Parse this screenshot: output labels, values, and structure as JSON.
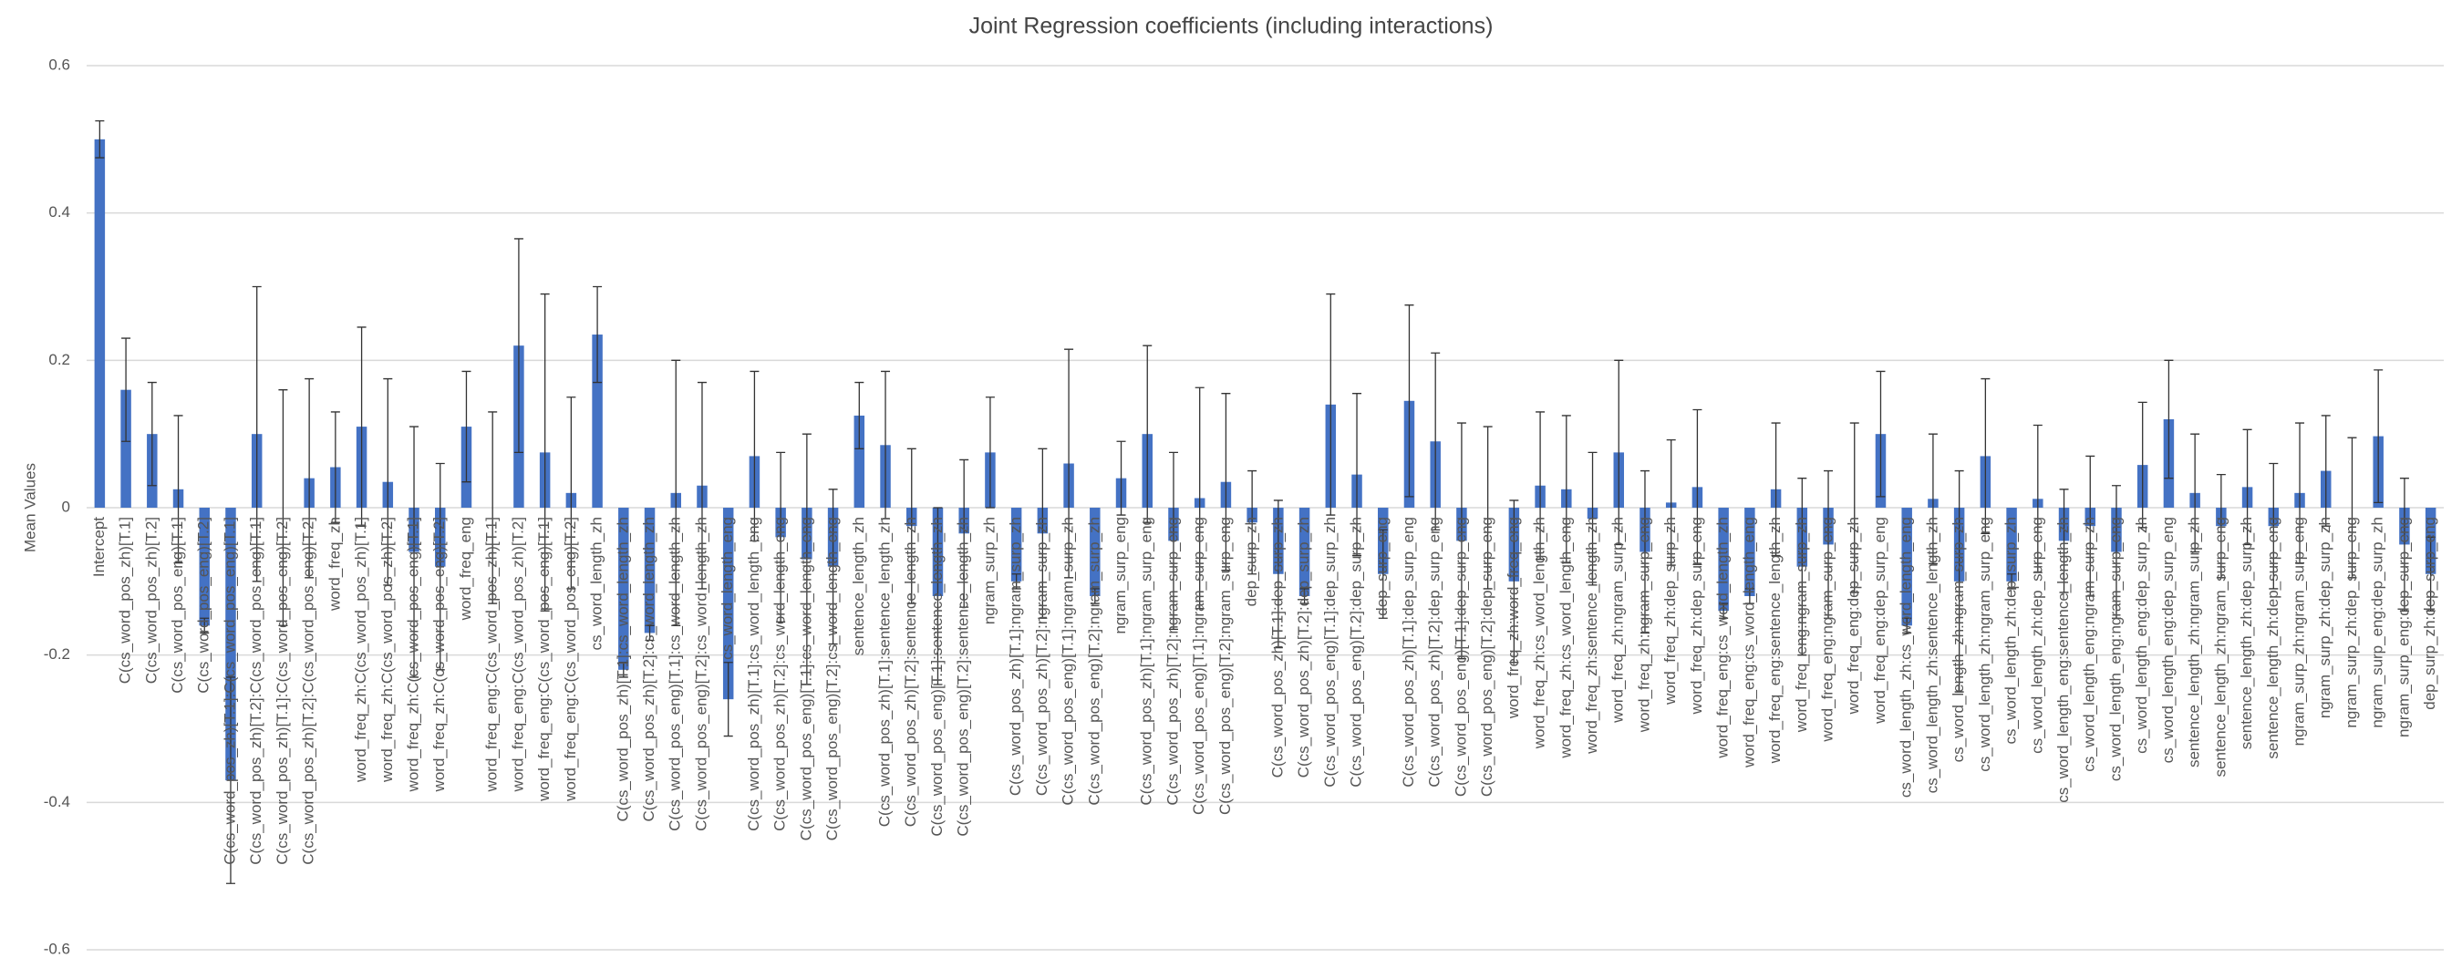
{
  "chart_data": {
    "type": "bar",
    "title": "Joint Regression coefficients (including interactions)",
    "y_label": "Mean Values",
    "color": "#4472c4",
    "error_color": "#333333",
    "grid": true,
    "ylim": [
      -0.6,
      0.6
    ],
    "yticks": [
      -0.6,
      -0.4,
      -0.2,
      0,
      0.2,
      0.4,
      0.6
    ],
    "categories": [
      "Intercept",
      "C(cs_word_pos_zh)[T.1]",
      "C(cs_word_pos_zh)[T.2]",
      "C(cs_word_pos_eng)[T.1]",
      "C(cs_word_pos_eng)[T.2]",
      "C(cs_word_pos_zh)[T.1]:C(cs_word_pos_eng)[T.1]",
      "C(cs_word_pos_zh)[T.2]:C(cs_word_pos_eng)[T.1]",
      "C(cs_word_pos_zh)[T.1]:C(cs_word_pos_eng)[T.2]",
      "C(cs_word_pos_zh)[T.2]:C(cs_word_pos_eng)[T.2]",
      "word_freq_zh",
      "word_freq_zh:C(cs_word_pos_zh)[T.1]",
      "word_freq_zh:C(cs_word_pos_zh)[T.2]",
      "word_freq_zh:C(cs_word_pos_eng)[T.1]",
      "word_freq_zh:C(cs_word_pos_eng)[T.2]",
      "word_freq_eng",
      "word_freq_eng:C(cs_word_pos_zh)[T.1]",
      "word_freq_eng:C(cs_word_pos_zh)[T.2]",
      "word_freq_eng:C(cs_word_pos_eng)[T.1]",
      "word_freq_eng:C(cs_word_pos_eng)[T.2]",
      "cs_word_length_zh",
      "C(cs_word_pos_zh)[T.1]:cs_word_length_zh",
      "C(cs_word_pos_zh)[T.2]:cs_word_length_zh",
      "C(cs_word_pos_eng)[T.1]:cs_word_length_zh",
      "C(cs_word_pos_eng)[T.2]:cs_word_length_zh",
      "cs_word_length_eng",
      "C(cs_word_pos_zh)[T.1]:cs_word_length_eng",
      "C(cs_word_pos_zh)[T.2]:cs_word_length_eng",
      "C(cs_word_pos_eng)[T.1]:cs_word_length_eng",
      "C(cs_word_pos_eng)[T.2]:cs_word_length_eng",
      "sentence_length_zh",
      "C(cs_word_pos_zh)[T.1]:sentence_length_zh",
      "C(cs_word_pos_zh)[T.2]:sentence_length_zh",
      "C(cs_word_pos_eng)[T.1]:sentence_length_zh",
      "C(cs_word_pos_eng)[T.2]:sentence_length_zh",
      "ngram_surp_zh",
      "C(cs_word_pos_zh)[T.1]:ngram_surp_zh",
      "C(cs_word_pos_zh)[T.2]:ngram_surp_zh",
      "C(cs_word_pos_eng)[T.1]:ngram_surp_zh",
      "C(cs_word_pos_eng)[T.2]:ngram_surp_zh",
      "ngram_surp_eng",
      "C(cs_word_pos_zh)[T.1]:ngram_surp_eng",
      "C(cs_word_pos_zh)[T.2]:ngram_surp_eng",
      "C(cs_word_pos_eng)[T.1]:ngram_surp_eng",
      "C(cs_word_pos_eng)[T.2]:ngram_surp_eng",
      "dep_surp_zh",
      "C(cs_word_pos_zh)[T.1]:dep_surp_zh",
      "C(cs_word_pos_zh)[T.2]:dep_surp_zh",
      "C(cs_word_pos_eng)[T.1]:dep_surp_zh",
      "C(cs_word_pos_eng)[T.2]:dep_surp_zh",
      "dep_surp_eng",
      "C(cs_word_pos_zh)[T.1]:dep_surp_eng",
      "C(cs_word_pos_zh)[T.2]:dep_surp_eng",
      "C(cs_word_pos_eng)[T.1]:dep_surp_eng",
      "C(cs_word_pos_eng)[T.2]:dep_surp_eng",
      "word_freq_zh:word_freq_eng",
      "word_freq_zh:cs_word_length_zh",
      "word_freq_zh:cs_word_length_eng",
      "word_freq_zh:sentence_length_zh",
      "word_freq_zh:ngram_surp_zh",
      "word_freq_zh:ngram_surp_eng",
      "word_freq_zh:dep_surp_zh",
      "word_freq_zh:dep_surp_eng",
      "word_freq_eng:cs_word_length_zh",
      "word_freq_eng:cs_word_length_eng",
      "word_freq_eng:sentence_length_zh",
      "word_freq_eng:ngram_surp_zh",
      "word_freq_eng:ngram_surp_eng",
      "word_freq_eng:dep_surp_zh",
      "word_freq_eng:dep_surp_eng",
      "cs_word_length_zh:cs_word_length_eng",
      "cs_word_length_zh:sentence_length_zh",
      "cs_word_length_zh:ngram_surp_zh",
      "cs_word_length_zh:ngram_surp_eng",
      "cs_word_length_zh:dep_surp_zh",
      "cs_word_length_zh:dep_surp_eng",
      "cs_word_length_eng:sentence_length_zh",
      "cs_word_length_eng:ngram_surp_zh",
      "cs_word_length_eng:ngram_surp_eng",
      "cs_word_length_eng:dep_surp_zh",
      "cs_word_length_eng:dep_surp_eng",
      "sentence_length_zh:ngram_surp_zh",
      "sentence_length_zh:ngram_surp_eng",
      "sentence_length_zh:dep_surp_zh",
      "sentence_length_zh:dep_surp_eng",
      "ngram_surp_zh:ngram_surp_eng",
      "ngram_surp_zh:dep_surp_zh",
      "ngram_surp_zh:dep_surp_eng",
      "ngram_surp_eng:dep_surp_zh",
      "ngram_surp_eng:dep_surp_eng",
      "dep_surp_zh:dep_surp_eng"
    ],
    "values": [
      0.5,
      0.16,
      0.1,
      0.025,
      -0.16,
      -0.37,
      0.1,
      0.0,
      0.04,
      0.055,
      0.11,
      0.035,
      -0.06,
      -0.08,
      0.11,
      0.0,
      0.22,
      0.075,
      0.02,
      0.235,
      -0.22,
      -0.17,
      0.02,
      0.03,
      -0.26,
      0.07,
      -0.04,
      -0.07,
      -0.08,
      0.125,
      0.085,
      -0.025,
      -0.12,
      -0.035,
      0.075,
      -0.1,
      -0.035,
      0.06,
      -0.12,
      0.04,
      0.1,
      -0.045,
      0.013,
      0.035,
      -0.02,
      -0.09,
      -0.12,
      0.14,
      0.045,
      -0.09,
      0.145,
      0.09,
      -0.045,
      0.0,
      -0.1,
      0.03,
      0.025,
      -0.015,
      0.075,
      -0.06,
      0.007,
      0.028,
      -0.14,
      -0.12,
      0.025,
      -0.08,
      -0.05,
      0.0,
      0.1,
      -0.16,
      0.012,
      -0.1,
      0.07,
      -0.1,
      0.012,
      -0.045,
      -0.025,
      -0.06,
      0.058,
      0.12,
      0.02,
      -0.025,
      0.028,
      -0.025,
      0.02,
      0.05,
      0.0,
      0.097,
      -0.05,
      -0.09
    ],
    "errors": [
      0.025,
      0.07,
      0.07,
      0.1,
      0.01,
      0.14,
      0.2,
      0.16,
      0.135,
      0.075,
      0.135,
      0.14,
      0.17,
      0.14,
      0.075,
      0.13,
      0.145,
      0.215,
      0.13,
      0.065,
      0.01,
      0.01,
      0.18,
      0.14,
      0.05,
      0.115,
      0.115,
      0.17,
      0.105,
      0.045,
      0.1,
      0.105,
      0.12,
      0.1,
      0.075,
      0.01,
      0.115,
      0.155,
      0.01,
      0.05,
      0.12,
      0.12,
      0.15,
      0.12,
      0.07,
      0.1,
      0.01,
      0.15,
      0.11,
      0.06,
      0.13,
      0.12,
      0.16,
      0.11,
      0.11,
      0.1,
      0.1,
      0.09,
      0.125,
      0.11,
      0.085,
      0.105,
      0.01,
      0.01,
      0.09,
      0.12,
      0.1,
      0.115,
      0.085,
      0.01,
      0.088,
      0.15,
      0.105,
      0.01,
      0.1,
      0.07,
      0.095,
      0.09,
      0.085,
      0.08,
      0.08,
      0.07,
      0.078,
      0.085,
      0.095,
      0.075,
      0.095,
      0.09,
      0.09,
      0.05
    ]
  }
}
